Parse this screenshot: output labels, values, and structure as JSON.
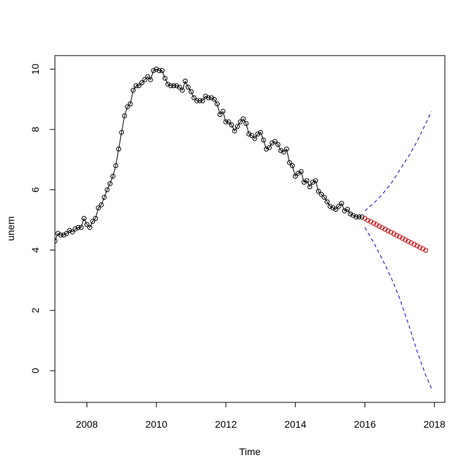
{
  "chart_data": {
    "type": "line",
    "title": "",
    "xlabel": "Time",
    "ylabel": "unem",
    "xlim": [
      2007.08,
      2018.3
    ],
    "ylim": [
      -1.05,
      10.45
    ],
    "x_ticks": [
      2008,
      2010,
      2012,
      2014,
      2016,
      2018
    ],
    "y_ticks": [
      0,
      2,
      4,
      6,
      8,
      10
    ],
    "grid": false,
    "legend": "none",
    "colors": {
      "observed": "#000000",
      "forecast": "#cc0000",
      "interval": "#0000cc"
    },
    "series": [
      {
        "style": "line+open-circles",
        "start": 2007.083,
        "step": 0.0833,
        "values": [
          4.3,
          4.55,
          4.5,
          4.5,
          4.55,
          4.65,
          4.6,
          4.7,
          4.75,
          4.75,
          5.05,
          4.85,
          4.75,
          4.95,
          5.05,
          5.4,
          5.5,
          5.75,
          6.0,
          6.2,
          6.45,
          6.8,
          7.35,
          7.9,
          8.45,
          8.75,
          8.85,
          9.3,
          9.45,
          9.45,
          9.55,
          9.65,
          9.75,
          9.65,
          9.95,
          10.0,
          9.95,
          9.95,
          9.7,
          9.5,
          9.45,
          9.45,
          9.45,
          9.4,
          9.3,
          9.6,
          9.4,
          9.25,
          9.05,
          8.95,
          8.95,
          8.95,
          9.1,
          9.05,
          9.05,
          9.0,
          8.85,
          8.5,
          8.6,
          8.25,
          8.25,
          8.15,
          7.95,
          8.1,
          8.25,
          8.35,
          8.2,
          7.85,
          7.8,
          7.7,
          7.85,
          7.9,
          7.65,
          7.35,
          7.4,
          7.55,
          7.6,
          7.5,
          7.3,
          7.25,
          7.35,
          6.9,
          6.8,
          6.45,
          6.55,
          6.6,
          6.25,
          6.3,
          6.1,
          6.25,
          6.3,
          5.95,
          5.85,
          5.75,
          5.6,
          5.45,
          5.4,
          5.35,
          5.45,
          5.55,
          5.3,
          5.35,
          5.2,
          5.15,
          5.1,
          5.1,
          5.1
        ]
      },
      {
        "style": "open-circles",
        "start": 2016.0,
        "step": 0.0833,
        "values": [
          5.05,
          4.99,
          4.94,
          4.89,
          4.84,
          4.79,
          4.74,
          4.69,
          4.64,
          4.59,
          4.54,
          4.49,
          4.44,
          4.39,
          4.34,
          4.29,
          4.24,
          4.19,
          4.14,
          4.09,
          4.04,
          3.99
        ]
      },
      {
        "style": "dashed",
        "x": [
          2016.0,
          2016.25,
          2016.5,
          2016.75,
          2017.0,
          2017.25,
          2017.5,
          2017.75,
          2017.92
        ],
        "values": [
          5.3,
          5.55,
          5.85,
          6.2,
          6.65,
          7.1,
          7.6,
          8.2,
          8.6
        ]
      },
      {
        "style": "dashed",
        "x": [
          2016.0,
          2016.25,
          2016.5,
          2016.75,
          2017.0,
          2017.25,
          2017.5,
          2017.75,
          2017.92
        ],
        "values": [
          4.75,
          4.25,
          3.7,
          3.1,
          2.4,
          1.55,
          0.65,
          -0.15,
          -0.6
        ]
      }
    ]
  }
}
